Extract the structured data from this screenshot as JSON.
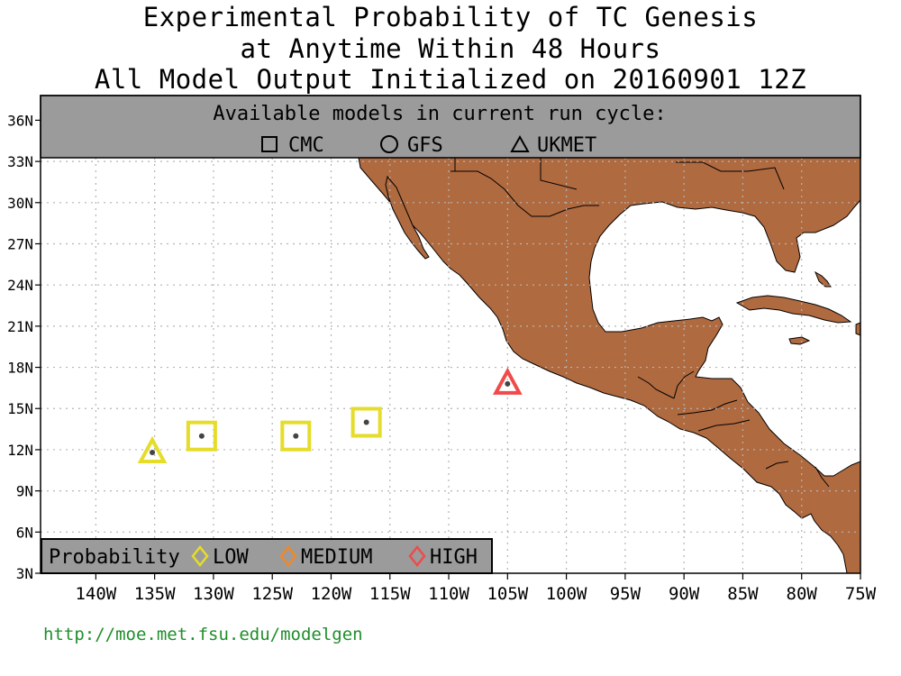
{
  "title": {
    "line1": "Experimental Probability of TC Genesis",
    "line2": "at Anytime Within 48 Hours",
    "line3": "All Model Output Initialized on 20160901 12Z"
  },
  "model_legend": {
    "heading": "Available models in current run cycle:",
    "models": [
      {
        "name": "CMC",
        "symbol": "square-icon"
      },
      {
        "name": "GFS",
        "symbol": "circle-icon"
      },
      {
        "name": "UKMET",
        "symbol": "triangle-icon"
      }
    ]
  },
  "probability_legend": {
    "label": "Probability",
    "levels": [
      {
        "name": "LOW",
        "color": "#e6dc2a"
      },
      {
        "name": "MEDIUM",
        "color": "#f0882a"
      },
      {
        "name": "HIGH",
        "color": "#f04a4a"
      }
    ]
  },
  "axes": {
    "lon_labels": [
      "140W",
      "135W",
      "130W",
      "125W",
      "120W",
      "115W",
      "110W",
      "105W",
      "100W",
      "95W",
      "90W",
      "85W",
      "80W",
      "75W"
    ],
    "lat_labels": [
      "36N",
      "33N",
      "30N",
      "27N",
      "24N",
      "21N",
      "18N",
      "15N",
      "12N",
      "9N",
      "6N",
      "3N"
    ]
  },
  "markers": [
    {
      "model": "UKMET",
      "lon": -135.2,
      "lat": 11.8,
      "level": "LOW"
    },
    {
      "model": "CMC",
      "lon": -131.0,
      "lat": 13.0,
      "level": "LOW"
    },
    {
      "model": "CMC",
      "lon": -123.0,
      "lat": 13.0,
      "level": "LOW"
    },
    {
      "model": "CMC",
      "lon": -117.0,
      "lat": 14.0,
      "level": "LOW"
    },
    {
      "model": "UKMET",
      "lon": -105.0,
      "lat": 16.8,
      "level": "HIGH"
    }
  ],
  "colors": {
    "land": "#b06a40",
    "panel": "#9b9b9b",
    "grid": "#b4b4b4",
    "url": "#1f8f2a"
  },
  "url": "http://moe.met.fsu.edu/modelgen"
}
